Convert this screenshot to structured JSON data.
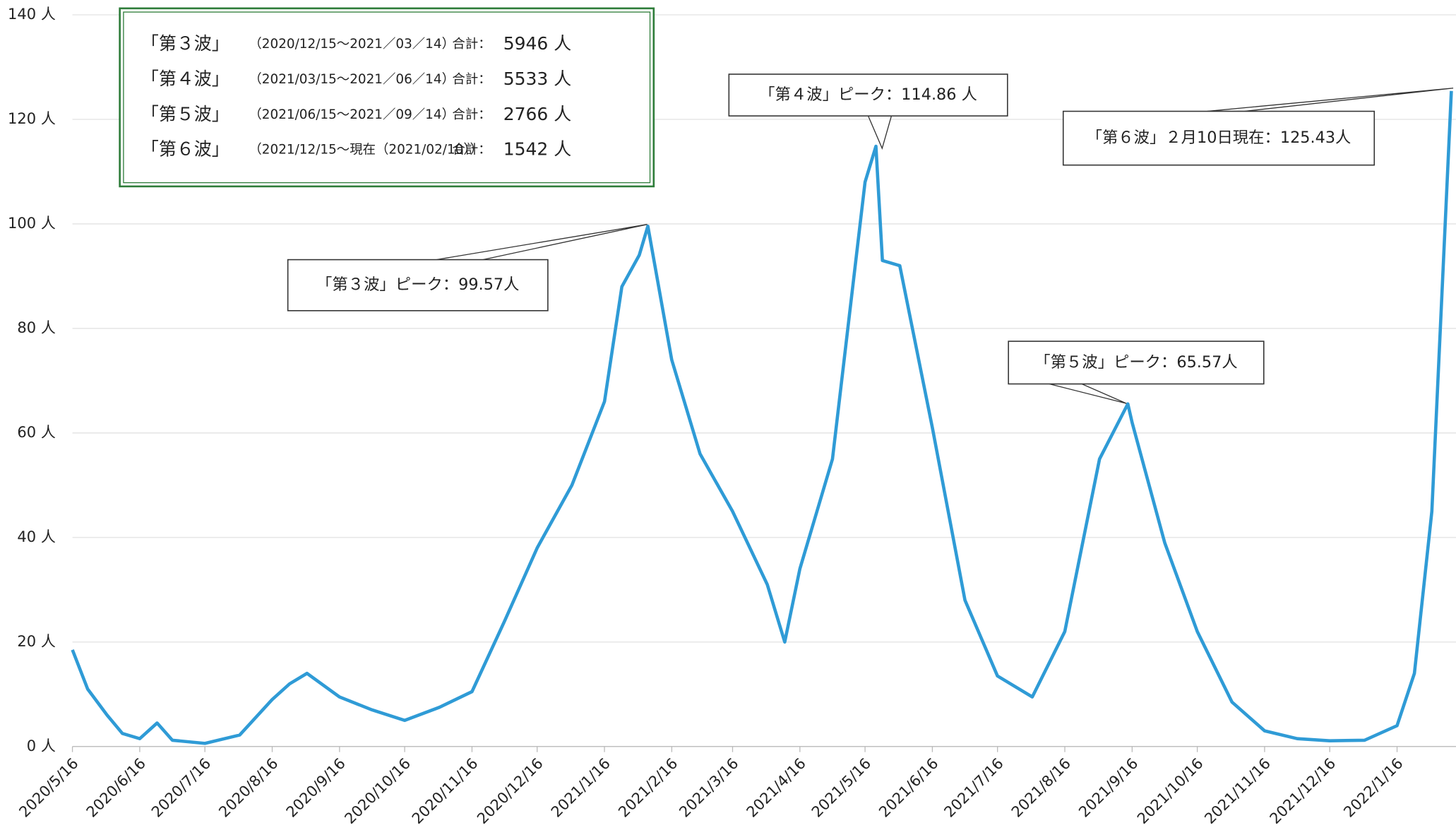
{
  "chart_data": {
    "type": "line",
    "x": [
      "2020/5/16",
      "2020/5/23",
      "2020/6/1",
      "2020/6/8",
      "2020/6/16",
      "2020/6/24",
      "2020/7/1",
      "2020/7/16",
      "2020/8/1",
      "2020/8/16",
      "2020/8/24",
      "2020/9/1",
      "2020/9/16",
      "2020/10/1",
      "2020/10/16",
      "2020/11/1",
      "2020/11/16",
      "2020/12/1",
      "2020/12/16",
      "2021/1/1",
      "2021/1/16",
      "2021/1/24",
      "2021/2/1",
      "2021/2/5",
      "2021/2/16",
      "2021/3/1",
      "2021/3/16",
      "2021/4/1",
      "2021/4/9",
      "2021/4/16",
      "2021/5/1",
      "2021/5/16",
      "2021/5/21",
      "2021/5/24",
      "2021/6/1",
      "2021/6/16",
      "2021/7/1",
      "2021/7/16",
      "2021/8/1",
      "2021/8/16",
      "2021/9/1",
      "2021/9/14",
      "2021/9/16",
      "2021/10/1",
      "2021/10/16",
      "2021/11/1",
      "2021/11/16",
      "2021/12/1",
      "2021/12/16",
      "2022/1/1",
      "2022/1/16",
      "2022/1/24",
      "2022/2/1",
      "2022/2/10"
    ],
    "series": [
      {
        "color": "#2f9bd6",
        "values": [
          18.5,
          11,
          6,
          2.5,
          1.5,
          4.5,
          1.2,
          0.6,
          2.2,
          9,
          12,
          14,
          9.5,
          7,
          5,
          7.5,
          10.5,
          24,
          38,
          50,
          66,
          88,
          94,
          99.57,
          74,
          56,
          45,
          31,
          20,
          34,
          55,
          108,
          114.86,
          93,
          92,
          61,
          28,
          13.5,
          9.5,
          22,
          55,
          65.57,
          62,
          39,
          22,
          8.5,
          3,
          1.5,
          1.1,
          1.2,
          4,
          14,
          45,
          125.43
        ]
      }
    ],
    "xlim": [
      "2020/5/16",
      "2022/2/10"
    ],
    "xticks": [
      "2020/5/16",
      "2020/6/16",
      "2020/7/16",
      "2020/8/16",
      "2020/9/16",
      "2020/10/16",
      "2020/11/16",
      "2020/12/16",
      "2021/1/16",
      "2021/2/16",
      "2021/3/16",
      "2021/4/16",
      "2021/5/16",
      "2021/6/16",
      "2021/7/16",
      "2021/8/16",
      "2021/9/16",
      "2021/10/16",
      "2021/11/16",
      "2021/12/16",
      "2022/1/16"
    ],
    "ylim": [
      0,
      140
    ],
    "yticks": [
      {
        "value": 0,
        "label": "0 人"
      },
      {
        "value": 20,
        "label": "20 人"
      },
      {
        "value": 40,
        "label": "40 人"
      },
      {
        "value": 60,
        "label": "60 人"
      },
      {
        "value": 80,
        "label": "80 人"
      },
      {
        "value": 100,
        "label": "100 人"
      },
      {
        "value": 120,
        "label": "120 人"
      },
      {
        "value": 140,
        "label": "140 人"
      }
    ],
    "grid": true,
    "annotations": [
      "「第３波」ピーク：99.57人",
      "「第４波」ピーク：114.86 人",
      "「第５波」ピーク：65.57人",
      "「第６波」２月10日現在：125.43人"
    ],
    "summary": [
      {
        "wave": "「第３波」",
        "period": "（2020/12/15～2021／03／14）",
        "total_label": "合計：",
        "total": "5946 人"
      },
      {
        "wave": "「第４波」",
        "period": "（2021/03/15～2021／06／14）",
        "total_label": "合計：",
        "total": "5533 人"
      },
      {
        "wave": "「第５波」",
        "period": "（2021/06/15～2021／09／14）",
        "total_label": "合計：",
        "total": "2766 人"
      },
      {
        "wave": "「第６波」",
        "period": "（2021/12/15～現在（2021/02/10））",
        "total_label": "合計：",
        "total": "1542 人"
      }
    ]
  }
}
